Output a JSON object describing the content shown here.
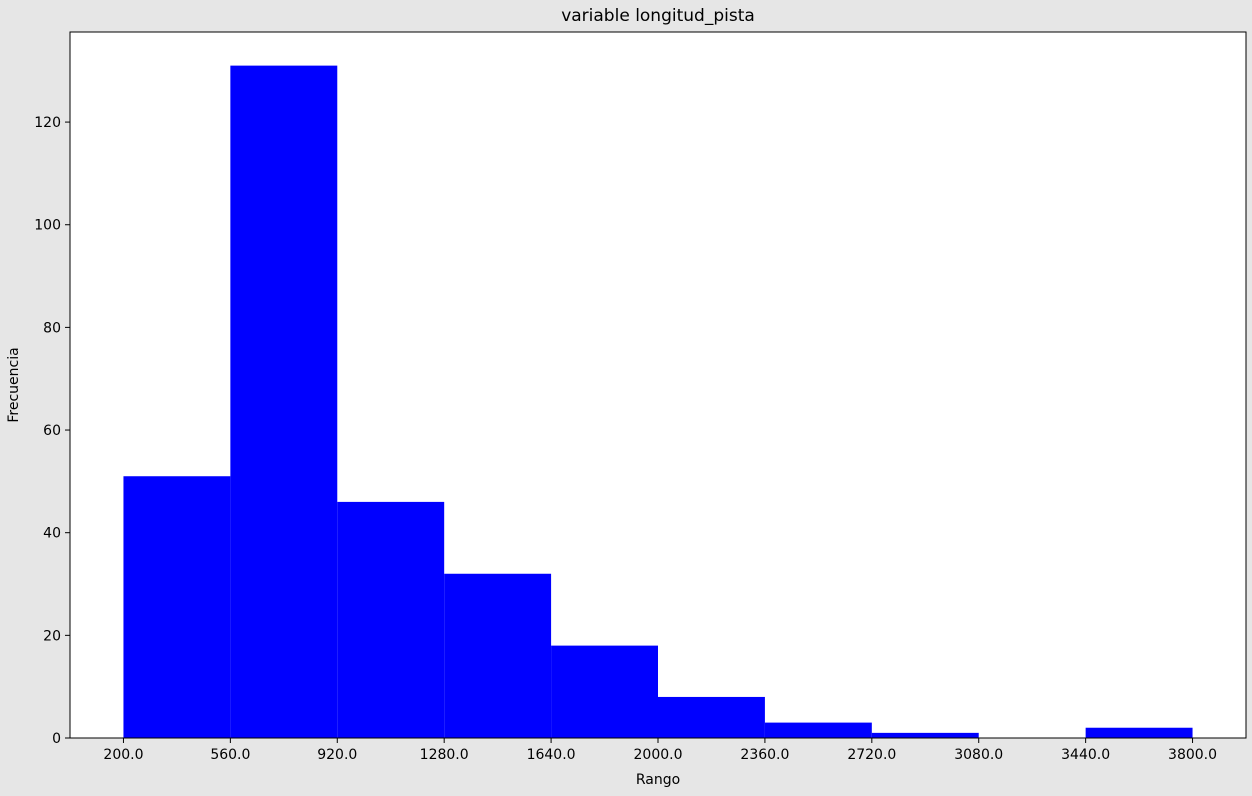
{
  "chart_data": {
    "type": "bar",
    "title": "variable longitud_pista",
    "xlabel": "Rango",
    "ylabel": "Frecuencia",
    "bin_edges": [
      200,
      560,
      920,
      1280,
      1640,
      2000,
      2360,
      2720,
      3080,
      3440,
      3800
    ],
    "values": [
      51,
      131,
      46,
      32,
      18,
      8,
      3,
      1,
      0,
      2
    ],
    "x_tick_labels": [
      "200.0",
      "560.0",
      "920.0",
      "1280.0",
      "1640.0",
      "2000.0",
      "2360.0",
      "2720.0",
      "3080.0",
      "3440.0",
      "3800.0"
    ],
    "y_ticks": [
      0,
      20,
      40,
      60,
      80,
      100,
      120
    ],
    "ylim": [
      0,
      137.55
    ],
    "xlim": [
      20,
      3980
    ],
    "bar_color": "#0000ff",
    "grid": false,
    "legend": false
  }
}
